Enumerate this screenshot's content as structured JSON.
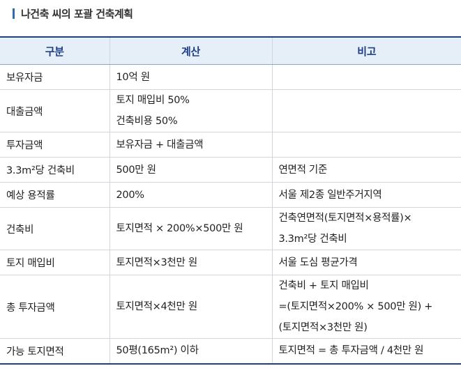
{
  "title": "나건축 씨의 포괄 건축계획",
  "headers": [
    "구분",
    "계산",
    "비고"
  ],
  "rows": [
    {
      "label": "보유자금",
      "calc": [
        "10억 원"
      ],
      "note": []
    },
    {
      "label": "대출금액",
      "calc": [
        "토지 매입비 50%",
        "건축비용 50%"
      ],
      "note": []
    },
    {
      "label": "투자금액",
      "calc": [
        "보유자금 + 대출금액"
      ],
      "note": []
    },
    {
      "label": "3.3m²당 건축비",
      "calc": [
        "500만 원"
      ],
      "note": [
        "연면적 기준"
      ]
    },
    {
      "label": "예상 용적률",
      "calc": [
        "200%"
      ],
      "note": [
        "서울 제2종 일반주거지역"
      ]
    },
    {
      "label": "건축비",
      "calc": [
        "토지면적 × 200%×500만 원"
      ],
      "note": [
        "건축연면적(토지면적×용적률)×",
        "3.3m²당 건축비"
      ]
    },
    {
      "label": "토지 매입비",
      "calc": [
        "토지면적×3천만 원"
      ],
      "note": [
        "서울 도심 평균가격"
      ]
    },
    {
      "label": "총 투자금액",
      "calc": [
        "토지면적×4천만 원"
      ],
      "note": [
        "건축비 + 토지 매입비",
        "=(토지면적×200% × 500만 원) +",
        " (토지면적×3천만 원)"
      ]
    },
    {
      "label": "가능 토지면적",
      "calc": [
        "50평(165m²) 이하"
      ],
      "note": [
        "토지면적 = 총 투자금액 / 4천만 원"
      ]
    }
  ]
}
